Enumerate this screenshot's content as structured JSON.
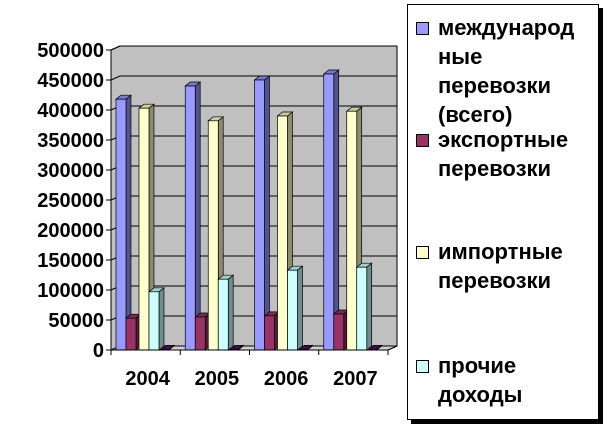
{
  "chart_data": {
    "type": "bar",
    "categories": [
      "2004",
      "2005",
      "2006",
      "2007"
    ],
    "series": [
      {
        "name": "международные перевозки (всего)",
        "values": [
          418000,
          440000,
          450000,
          460000
        ],
        "color": "#9999ff"
      },
      {
        "name": "экспортные перевозки",
        "values": [
          53000,
          55000,
          57000,
          60000
        ],
        "color": "#993366"
      },
      {
        "name": "импортные перевозки",
        "values": [
          403000,
          382000,
          390000,
          398000
        ],
        "color": "#ffffcc"
      },
      {
        "name": "прочие доходы",
        "values": [
          97000,
          118000,
          133000,
          138000
        ],
        "color": "#ccffff"
      },
      {
        "name": "",
        "values": [
          1000,
          1000,
          1000,
          1000
        ],
        "color": "#660066"
      }
    ],
    "ylim": [
      0,
      500000
    ],
    "yticks": [
      "0",
      "50000",
      "100000",
      "150000",
      "200000",
      "250000",
      "300000",
      "350000",
      "400000",
      "450000",
      "500000"
    ],
    "grid": true,
    "legend_position": "right",
    "title": "",
    "xlabel": "",
    "ylabel": ""
  },
  "legend": {
    "items": [
      {
        "label": "международ ные перевозки (всего)",
        "color": "#9999ff"
      },
      {
        "label": "экспортные перевозки",
        "color": "#993366"
      },
      {
        "label": "импортные перевозки",
        "color": "#ffffcc"
      },
      {
        "label": "прочие доходы",
        "color": "#ccffff"
      }
    ]
  }
}
